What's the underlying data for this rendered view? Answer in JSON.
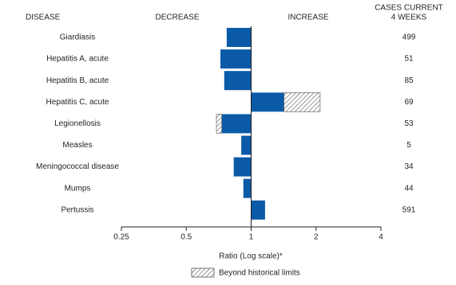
{
  "chart_data": {
    "type": "bar",
    "orientation": "horizontal",
    "headers": {
      "disease": "DISEASE",
      "decrease": "DECREASE",
      "increase": "INCREASE",
      "cases": [
        "CASES CURRENT",
        "4 WEEKS"
      ]
    },
    "categories": [
      "Giardiasis",
      "Hepatitis A, acute",
      "Hepatitis B, acute",
      "Hepatitis C, acute",
      "Legionellosis",
      "Measles",
      "Meningococcal disease",
      "Mumps",
      "Pertussis"
    ],
    "values": [
      0.77,
      0.72,
      0.75,
      2.09,
      0.69,
      0.9,
      0.83,
      0.92,
      1.16
    ],
    "historical_limits": [
      null,
      null,
      null,
      1.42,
      0.73,
      null,
      null,
      null,
      null
    ],
    "cases": [
      499,
      51,
      85,
      69,
      53,
      5,
      34,
      44,
      591
    ],
    "color": "#0b5aa8",
    "xscale": "log",
    "xlim": [
      0.25,
      4
    ],
    "xticks": [
      0.25,
      0.5,
      1,
      2,
      4
    ],
    "xlabel": "Ratio (Log scale)*",
    "legend": "Beyond historical limits"
  }
}
